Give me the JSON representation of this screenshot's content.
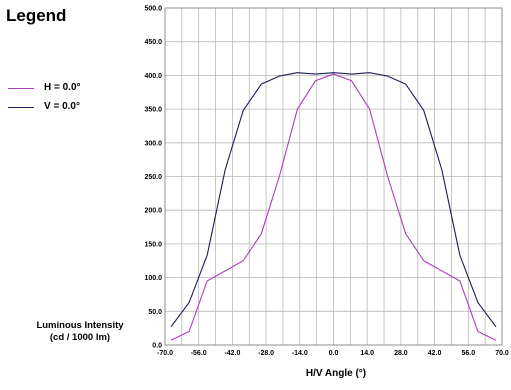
{
  "legend": {
    "title": "Legend",
    "items": [
      {
        "label": "H = 0.0°",
        "color": "#b03cc0"
      },
      {
        "label": "V = 0.0°",
        "color": "#1c1c5c"
      }
    ]
  },
  "chart_data": {
    "type": "line",
    "xlabel": "H/V Angle (°)",
    "ylabel_line1": "Luminous Intensity",
    "ylabel_line2": "(cd / 1000 lm)",
    "xlim": [
      -70,
      70
    ],
    "ylim": [
      0,
      500
    ],
    "x_tick_labels": [
      "-70.0",
      "-56.0",
      "-42.0",
      "-28.0",
      "-14.0",
      "0.0",
      "14.0",
      "28.0",
      "42.0",
      "56.0",
      "70.0"
    ],
    "y_tick_labels": [
      "0.0",
      "50.0",
      "100.0",
      "150.0",
      "200.0",
      "250.0",
      "300.0",
      "350.0",
      "400.0",
      "450.0",
      "500.0"
    ],
    "x_ticks": [
      -70,
      -56,
      -42,
      -28,
      -14,
      0,
      14,
      28,
      42,
      56,
      70
    ],
    "y_ticks": [
      0,
      50,
      100,
      150,
      200,
      250,
      300,
      350,
      400,
      450,
      500
    ],
    "grid": true,
    "series": [
      {
        "name": "H = 0.0°",
        "color": "#b03cc0",
        "x": [
          -67.5,
          -60,
          -52.5,
          -45,
          -37.5,
          -30,
          -22.5,
          -15,
          -7.5,
          0,
          7.5,
          15,
          22.5,
          30,
          37.5,
          45,
          52.5,
          60,
          67.5
        ],
        "y": [
          7,
          20,
          95,
          110,
          125,
          165,
          250,
          350,
          392,
          402,
          392,
          350,
          250,
          165,
          125,
          110,
          95,
          20,
          7
        ]
      },
      {
        "name": "V = 0.0°",
        "color": "#1c1c5c",
        "x": [
          -67.5,
          -60,
          -52.5,
          -45,
          -37.5,
          -30,
          -22.5,
          -15,
          -7.5,
          0,
          7.5,
          15,
          22.5,
          30,
          37.5,
          45,
          52.5,
          60,
          67.5
        ],
        "y": [
          27,
          63,
          133,
          260,
          348,
          387,
          399,
          404,
          402,
          404,
          402,
          404,
          399,
          387,
          348,
          260,
          133,
          63,
          27
        ]
      }
    ]
  }
}
